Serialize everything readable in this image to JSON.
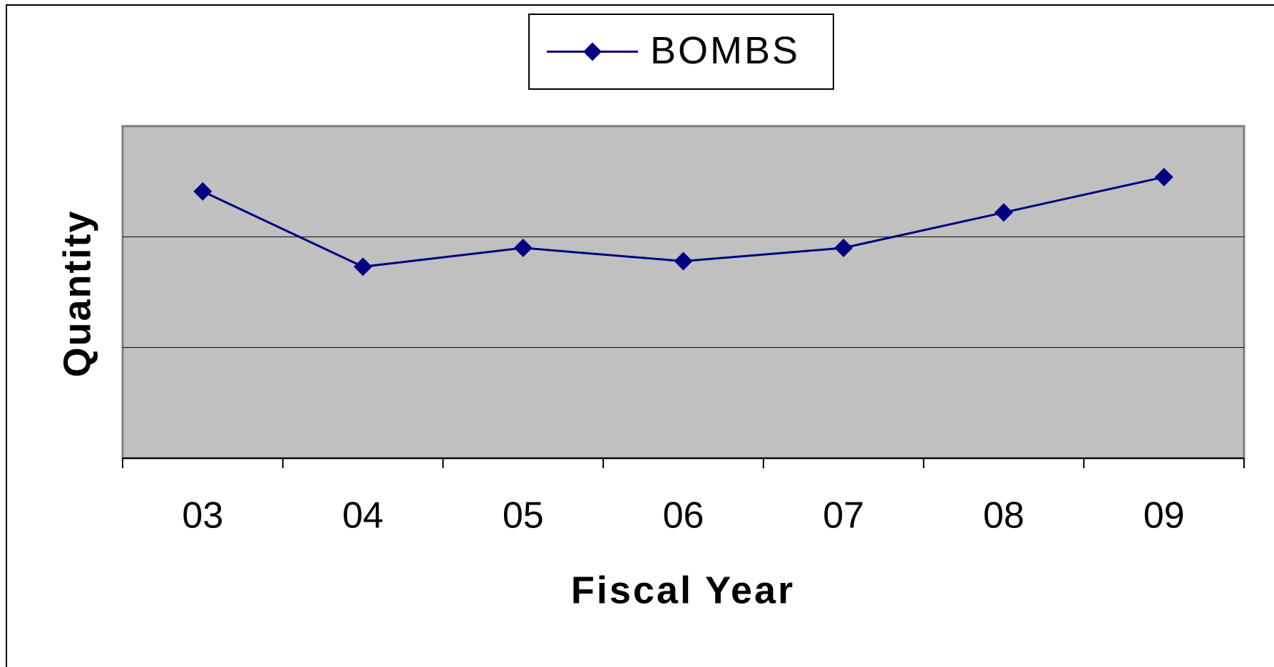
{
  "chart_data": {
    "type": "line",
    "x_label": "Fiscal Year",
    "y_label": "Quantity",
    "categories": [
      "03",
      "04",
      "05",
      "06",
      "07",
      "08",
      "09"
    ],
    "series": [
      {
        "name": "BOMBS",
        "color": "#000080",
        "values": [
          2.41,
          1.73,
          1.9,
          1.78,
          1.9,
          2.22,
          2.54
        ]
      }
    ],
    "ylim": [
      0,
      3
    ],
    "yticks": [
      0,
      1,
      2,
      3
    ],
    "grid": true,
    "legend": "top"
  }
}
